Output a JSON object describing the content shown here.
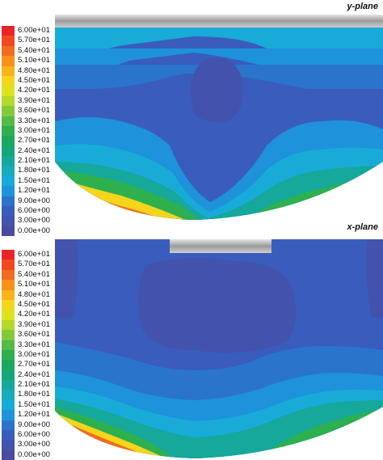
{
  "legend_labels": [
    "6.00e+01",
    "5.70e+01",
    "5.40e+01",
    "5.10e+01",
    "4.80e+01",
    "4.50e+01",
    "4.20e+01",
    "3.90e+01",
    "3.60e+01",
    "3.30e+01",
    "3.00e+01",
    "2.70e+01",
    "2.40e+01",
    "2.10e+01",
    "1.80e+01",
    "1.50e+01",
    "1.20e+01",
    "9.00e+00",
    "6.00e+00",
    "3.00e+00",
    "0.00e+00"
  ],
  "legend_colors": [
    "#e8242a",
    "#ee4a22",
    "#f26c1f",
    "#f7911a",
    "#f9b418",
    "#f6d51b",
    "#dde41f",
    "#b3d92a",
    "#83ca3a",
    "#55bb48",
    "#2eb04f",
    "#1ca85c",
    "#13a57a",
    "#15a89b",
    "#17abbb",
    "#19abd8",
    "#1e92db",
    "#2a74cc",
    "#3a5cbc",
    "#4352ad",
    "#4a4aa0"
  ],
  "top_panel": {
    "label": "y-plane"
  },
  "bottom_panel": {
    "label": "x-plane"
  },
  "colors": {
    "tank_blue": "#3a5cbc",
    "core_dark": "#4352ad",
    "mid_blue": "#2a74cc",
    "light_blue": "#1e92db",
    "cyan": "#19abd8",
    "teal": "#15a89b",
    "green": "#2eb04f",
    "yellow": "#f6d51b",
    "orange": "#f26c1f",
    "red": "#e8242a",
    "lid_gray": "#a8a8a8"
  }
}
